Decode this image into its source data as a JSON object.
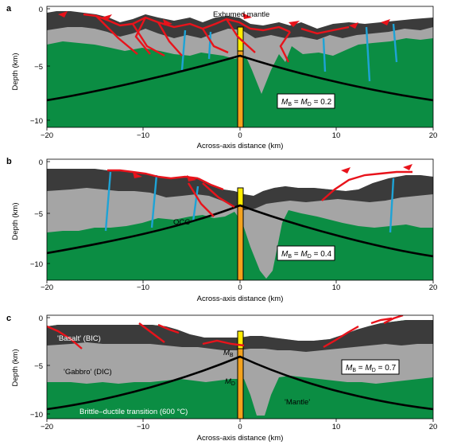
{
  "colors": {
    "mantle": "#0b8d43",
    "gabbro": "#a5a5a5",
    "basalt": "#3b3b3b",
    "fault": "#e8131b",
    "dike": "#1ea3d6",
    "bdt": "#000000",
    "yellow": "#ffed00",
    "orange": "#f4a21d"
  },
  "panels": [
    {
      "id": "a",
      "letter": "a",
      "ylabel": "Depth (km)",
      "xlabel": "Across-axis distance (km)",
      "xticks": [
        "−20",
        "−10",
        "0",
        "10",
        "20"
      ],
      "yticks": [
        "0",
        "−5",
        "−10"
      ],
      "mlabel": "M",
      "msub_b": "B",
      "msub_d": "D",
      "mvalue": "0.2",
      "annotation": "Exhumed mantle"
    },
    {
      "id": "b",
      "letter": "b",
      "ylabel": "Depth (km)",
      "xlabel": "Across-axis distance (km)",
      "xticks": [
        "−20",
        "−10",
        "0",
        "10",
        "20"
      ],
      "yticks": [
        "0",
        "−5",
        "−10"
      ],
      "mlabel": "M",
      "msub_b": "B",
      "msub_d": "D",
      "mvalue": "0.4",
      "annotation": "OCC"
    },
    {
      "id": "c",
      "letter": "c",
      "ylabel": "Depth (km)",
      "xlabel": "Across-axis distance (km)",
      "xticks": [
        "−20",
        "−10",
        "0",
        "10",
        "20"
      ],
      "yticks": [
        "0",
        "−5",
        "−10"
      ],
      "mlabel": "M",
      "msub_b": "B",
      "msub_d": "D",
      "mvalue": "0.7",
      "labels": {
        "basalt": "'Basalt' (BIC)",
        "gabbro": "'Gabbro' (DIC)",
        "bdt": "Brittle–ductile transition (600 °C)",
        "mantle": "'Mantle'",
        "mb": "M",
        "mb_sub": "B",
        "md": "M",
        "md_sub": "D"
      }
    }
  ]
}
